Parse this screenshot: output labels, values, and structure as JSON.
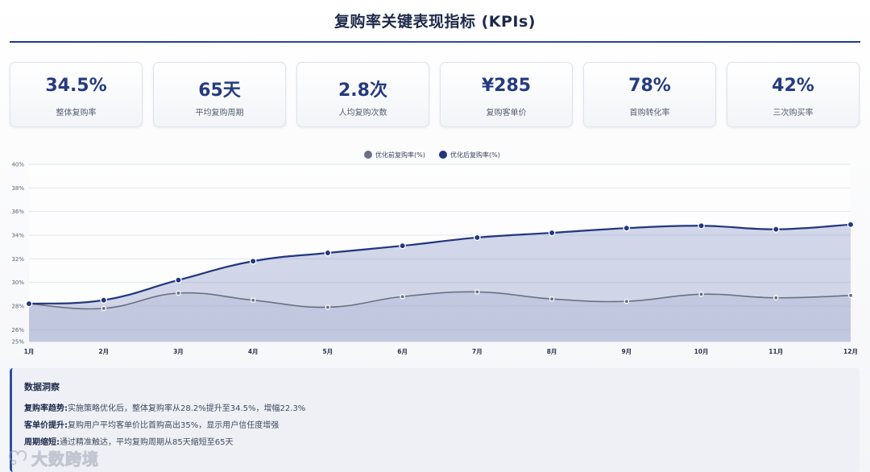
{
  "header": {
    "title": "复购率关键表现指标 (KPIs)"
  },
  "kpis": [
    {
      "value": "34.5%",
      "label": "整体复购率"
    },
    {
      "value": "65天",
      "label": "平均复购周期"
    },
    {
      "value": "2.8次",
      "label": "人均复购次数"
    },
    {
      "value": "¥285",
      "label": "复购客单价"
    },
    {
      "value": "78%",
      "label": "首购转化率"
    },
    {
      "value": "42%",
      "label": "三次购买率"
    }
  ],
  "chart_data": {
    "type": "area",
    "categories": [
      "1月",
      "2月",
      "3月",
      "4月",
      "5月",
      "6月",
      "7月",
      "8月",
      "9月",
      "10月",
      "11月",
      "12月"
    ],
    "series": [
      {
        "name": "优化前复购率(%)",
        "values": [
          28.2,
          27.8,
          29.1,
          28.5,
          27.9,
          28.8,
          29.2,
          28.6,
          28.4,
          29.0,
          28.7,
          28.9
        ],
        "color": "#6b7082"
      },
      {
        "name": "优化后复购率(%)",
        "values": [
          28.2,
          28.5,
          30.2,
          31.8,
          32.5,
          33.1,
          33.8,
          34.2,
          34.6,
          34.8,
          34.5,
          34.9
        ],
        "color": "#22367f"
      }
    ],
    "y_ticks": [
      "25%",
      "26%",
      "28%",
      "30%",
      "32%",
      "34%",
      "36%",
      "38%",
      "40%"
    ],
    "ylim": [
      25,
      40
    ],
    "grid": true,
    "legend_position": "top-center",
    "xlabel": "",
    "ylabel": ""
  },
  "insights": {
    "title": "数据洞察",
    "items": [
      {
        "lead": "复购率趋势:",
        "text": "实施策略优化后，整体复购率从28.2%提升至34.5%，增幅22.3%"
      },
      {
        "lead": "客单价提升:",
        "text": "复购用户平均客单价比首购高出35%，显示用户信任度增强"
      },
      {
        "lead": "周期缩短:",
        "text": "通过精准触达，平均复购周期从85天缩短至65天"
      }
    ]
  },
  "watermark": {
    "text": "大数跨境"
  }
}
